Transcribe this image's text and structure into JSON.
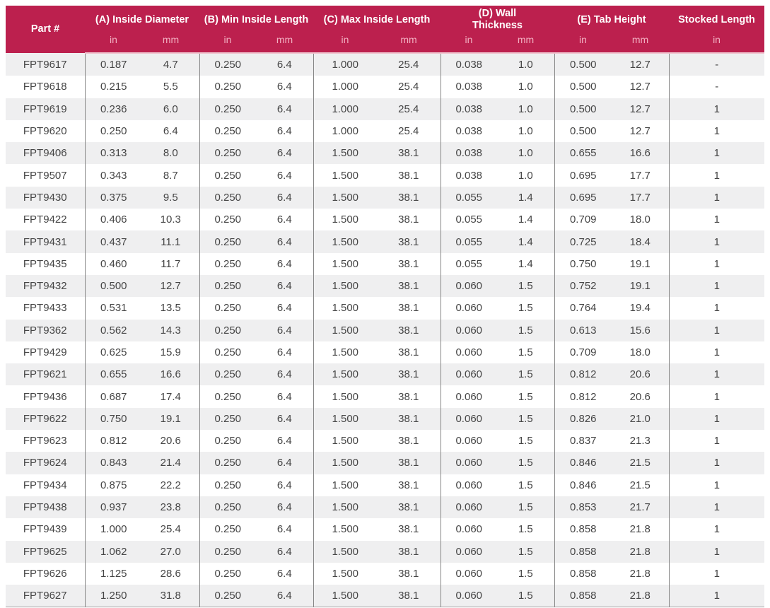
{
  "colors": {
    "header_bg": "#BC204E",
    "unit_text": "#F2AFC1",
    "stripe": "#EFEFF0",
    "divider": "#868686",
    "cell_text": "#454545"
  },
  "table": {
    "header_groups": [
      {
        "label": "Part #",
        "units": []
      },
      {
        "label": "(A) Inside Diameter",
        "units": [
          "in",
          "mm"
        ]
      },
      {
        "label": "(B) Min Inside Length",
        "units": [
          "in",
          "mm"
        ]
      },
      {
        "label": "(C) Max Inside Length",
        "units": [
          "in",
          "mm"
        ]
      },
      {
        "label": "(D) Wall Thickness",
        "units": [
          "in",
          "mm"
        ]
      },
      {
        "label": "(E) Tab Height",
        "units": [
          "in",
          "mm"
        ]
      },
      {
        "label": "Stocked Length",
        "units": [
          "in"
        ]
      }
    ],
    "column_keys": [
      "part-number",
      "inside-diameter-in",
      "inside-diameter-mm",
      "min-inside-length-in",
      "min-inside-length-mm",
      "max-inside-length-in",
      "max-inside-length-mm",
      "wall-thickness-in",
      "wall-thickness-mm",
      "tab-height-in",
      "tab-height-mm",
      "stocked-length-in"
    ],
    "rows": [
      [
        "FPT9617",
        "0.187",
        "4.7",
        "0.250",
        "6.4",
        "1.000",
        "25.4",
        "0.038",
        "1.0",
        "0.500",
        "12.7",
        "-"
      ],
      [
        "FPT9618",
        "0.215",
        "5.5",
        "0.250",
        "6.4",
        "1.000",
        "25.4",
        "0.038",
        "1.0",
        "0.500",
        "12.7",
        "-"
      ],
      [
        "FPT9619",
        "0.236",
        "6.0",
        "0.250",
        "6.4",
        "1.000",
        "25.4",
        "0.038",
        "1.0",
        "0.500",
        "12.7",
        "1"
      ],
      [
        "FPT9620",
        "0.250",
        "6.4",
        "0.250",
        "6.4",
        "1.000",
        "25.4",
        "0.038",
        "1.0",
        "0.500",
        "12.7",
        "1"
      ],
      [
        "FPT9406",
        "0.313",
        "8.0",
        "0.250",
        "6.4",
        "1.500",
        "38.1",
        "0.038",
        "1.0",
        "0.655",
        "16.6",
        "1"
      ],
      [
        "FPT9507",
        "0.343",
        "8.7",
        "0.250",
        "6.4",
        "1.500",
        "38.1",
        "0.038",
        "1.0",
        "0.695",
        "17.7",
        "1"
      ],
      [
        "FPT9430",
        "0.375",
        "9.5",
        "0.250",
        "6.4",
        "1.500",
        "38.1",
        "0.055",
        "1.4",
        "0.695",
        "17.7",
        "1"
      ],
      [
        "FPT9422",
        "0.406",
        "10.3",
        "0.250",
        "6.4",
        "1.500",
        "38.1",
        "0.055",
        "1.4",
        "0.709",
        "18.0",
        "1"
      ],
      [
        "FPT9431",
        "0.437",
        "11.1",
        "0.250",
        "6.4",
        "1.500",
        "38.1",
        "0.055",
        "1.4",
        "0.725",
        "18.4",
        "1"
      ],
      [
        "FPT9435",
        "0.460",
        "11.7",
        "0.250",
        "6.4",
        "1.500",
        "38.1",
        "0.055",
        "1.4",
        "0.750",
        "19.1",
        "1"
      ],
      [
        "FPT9432",
        "0.500",
        "12.7",
        "0.250",
        "6.4",
        "1.500",
        "38.1",
        "0.060",
        "1.5",
        "0.752",
        "19.1",
        "1"
      ],
      [
        "FPT9433",
        "0.531",
        "13.5",
        "0.250",
        "6.4",
        "1.500",
        "38.1",
        "0.060",
        "1.5",
        "0.764",
        "19.4",
        "1"
      ],
      [
        "FPT9362",
        "0.562",
        "14.3",
        "0.250",
        "6.4",
        "1.500",
        "38.1",
        "0.060",
        "1.5",
        "0.613",
        "15.6",
        "1"
      ],
      [
        "FPT9429",
        "0.625",
        "15.9",
        "0.250",
        "6.4",
        "1.500",
        "38.1",
        "0.060",
        "1.5",
        "0.709",
        "18.0",
        "1"
      ],
      [
        "FPT9621",
        "0.655",
        "16.6",
        "0.250",
        "6.4",
        "1.500",
        "38.1",
        "0.060",
        "1.5",
        "0.812",
        "20.6",
        "1"
      ],
      [
        "FPT9436",
        "0.687",
        "17.4",
        "0.250",
        "6.4",
        "1.500",
        "38.1",
        "0.060",
        "1.5",
        "0.812",
        "20.6",
        "1"
      ],
      [
        "FPT9622",
        "0.750",
        "19.1",
        "0.250",
        "6.4",
        "1.500",
        "38.1",
        "0.060",
        "1.5",
        "0.826",
        "21.0",
        "1"
      ],
      [
        "FPT9623",
        "0.812",
        "20.6",
        "0.250",
        "6.4",
        "1.500",
        "38.1",
        "0.060",
        "1.5",
        "0.837",
        "21.3",
        "1"
      ],
      [
        "FPT9624",
        "0.843",
        "21.4",
        "0.250",
        "6.4",
        "1.500",
        "38.1",
        "0.060",
        "1.5",
        "0.846",
        "21.5",
        "1"
      ],
      [
        "FPT9434",
        "0.875",
        "22.2",
        "0.250",
        "6.4",
        "1.500",
        "38.1",
        "0.060",
        "1.5",
        "0.846",
        "21.5",
        "1"
      ],
      [
        "FPT9438",
        "0.937",
        "23.8",
        "0.250",
        "6.4",
        "1.500",
        "38.1",
        "0.060",
        "1.5",
        "0.853",
        "21.7",
        "1"
      ],
      [
        "FPT9439",
        "1.000",
        "25.4",
        "0.250",
        "6.4",
        "1.500",
        "38.1",
        "0.060",
        "1.5",
        "0.858",
        "21.8",
        "1"
      ],
      [
        "FPT9625",
        "1.062",
        "27.0",
        "0.250",
        "6.4",
        "1.500",
        "38.1",
        "0.060",
        "1.5",
        "0.858",
        "21.8",
        "1"
      ],
      [
        "FPT9626",
        "1.125",
        "28.6",
        "0.250",
        "6.4",
        "1.500",
        "38.1",
        "0.060",
        "1.5",
        "0.858",
        "21.8",
        "1"
      ],
      [
        "FPT9627",
        "1.250",
        "31.8",
        "0.250",
        "6.4",
        "1.500",
        "38.1",
        "0.060",
        "1.5",
        "0.858",
        "21.8",
        "1"
      ]
    ]
  }
}
